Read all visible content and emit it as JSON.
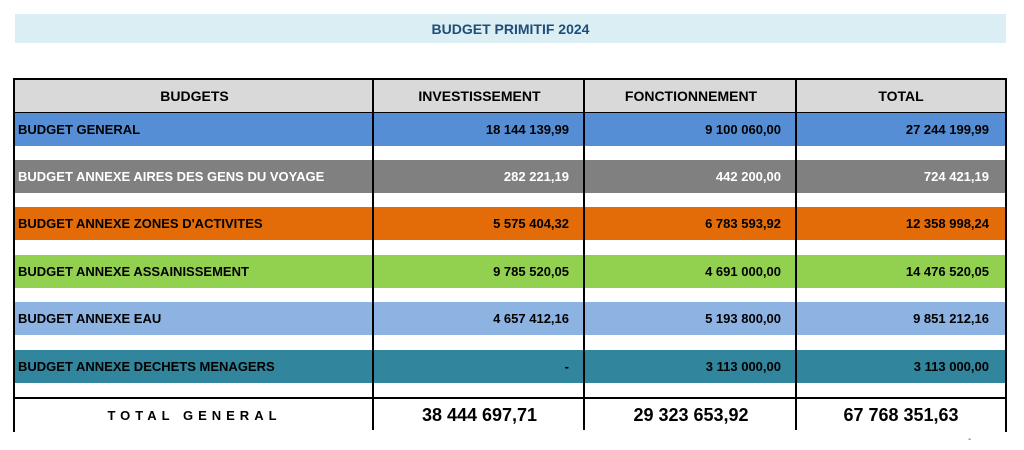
{
  "title": "BUDGET PRIMITIF 2024",
  "headers": {
    "budgets": "BUDGETS",
    "investissement": "INVESTISSEMENT",
    "fonctionnement": "FONCTIONNEMENT",
    "total": "TOTAL"
  },
  "rows": [
    {
      "label": "BUDGET GENERAL",
      "investissement": "18 144 139,99",
      "fonctionnement": "9 100 060,00",
      "total": "27 244 199,99",
      "color": "#558ed5"
    },
    {
      "label": "BUDGET ANNEXE AIRES DES GENS DU VOYAGE",
      "investissement": "282 221,19",
      "fonctionnement": "442 200,00",
      "total": "724 421,19",
      "color": "#808080"
    },
    {
      "label": "BUDGET ANNEXE ZONES D'ACTIVITES",
      "investissement": "5 575 404,32",
      "fonctionnement": "6 783 593,92",
      "total": "12 358 998,24",
      "color": "#e36c09"
    },
    {
      "label": "BUDGET ANNEXE ASSAINISSEMENT",
      "investissement": "9 785 520,05",
      "fonctionnement": "4 691 000,00",
      "total": "14 476 520,05",
      "color": "#92d050"
    },
    {
      "label": "BUDGET ANNEXE EAU",
      "investissement": "4 657 412,16",
      "fonctionnement": "5 193 800,00",
      "total": "9 851 212,16",
      "color": "#8db3e2"
    },
    {
      "label": "BUDGET ANNEXE DECHETS MENAGERS",
      "investissement": "-",
      "fonctionnement": "3 113 000,00",
      "total": "3 113 000,00",
      "color": "#31859c"
    }
  ],
  "total_general": {
    "label": "TOTAL GENERAL",
    "investissement": "38 444 697,71",
    "fonctionnement": "29 323 653,92",
    "total": "67 768 351,63"
  },
  "stray_mark": "-"
}
